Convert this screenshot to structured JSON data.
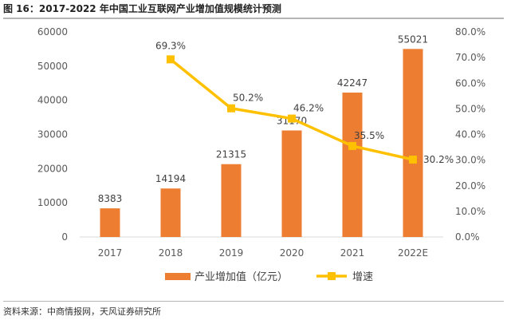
{
  "title": "图 16：2017-2022 年中国工业互联网产业增加值规模统计预测",
  "source": "资料来源：中商情报网，天风证券研究所",
  "colors": {
    "bar": "#ED7D31",
    "line": "#FFC000",
    "text": "#404040",
    "axis": "#D9D9D9"
  },
  "chart_data": {
    "type": "bar",
    "categories": [
      "2017",
      "2018",
      "2019",
      "2020",
      "2021",
      "2022E"
    ],
    "series": [
      {
        "name": "产业增加值（亿元）",
        "type": "bar",
        "axis": "left",
        "values": [
          8383,
          14194,
          21315,
          31170,
          42247,
          55021
        ],
        "labels": [
          "8383",
          "14194",
          "21315",
          "31170",
          "42247",
          "55021"
        ]
      },
      {
        "name": "增速",
        "type": "line",
        "axis": "right",
        "values": [
          null,
          69.3,
          50.2,
          46.2,
          35.5,
          30.2
        ],
        "labels": [
          "",
          "69.3%",
          "50.2%",
          "46.2%",
          "35.5%",
          "30.2%"
        ]
      }
    ],
    "ylim_left": [
      0,
      60000
    ],
    "yticks_left": [
      "0",
      "10000",
      "20000",
      "30000",
      "40000",
      "50000",
      "60000"
    ],
    "ylim_right": [
      0,
      80
    ],
    "yticks_right": [
      "0.0%",
      "10.0%",
      "20.0%",
      "30.0%",
      "40.0%",
      "50.0%",
      "60.0%",
      "70.0%",
      "80.0%"
    ],
    "grid": false,
    "legend_position": "bottom"
  }
}
